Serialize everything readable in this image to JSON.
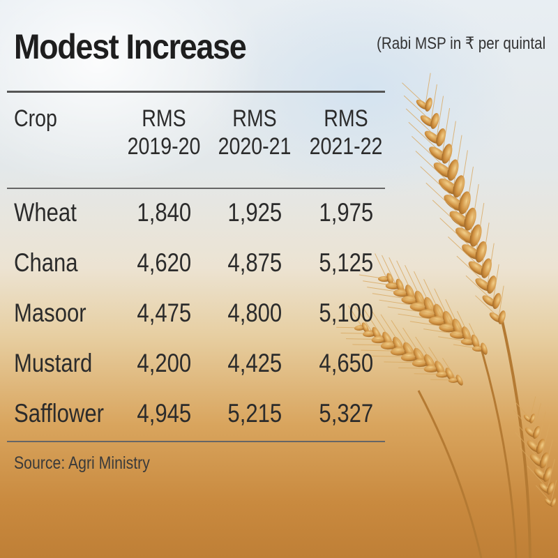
{
  "title": "Modest Increase",
  "subtitle": "(Rabi MSP in ₹ per quintal",
  "source": "Source: Agri Ministry",
  "chart_data": {
    "type": "table",
    "columns": [
      {
        "line1": "Crop",
        "line2": ""
      },
      {
        "line1": "RMS",
        "line2": "2019-20"
      },
      {
        "line1": "RMS",
        "line2": "2020-21"
      },
      {
        "line1": "RMS",
        "line2": "2021-22"
      }
    ],
    "rows": [
      {
        "crop": "Wheat",
        "values": [
          "1,840",
          "1,925",
          "1,975"
        ]
      },
      {
        "crop": "Chana",
        "values": [
          "4,620",
          "4,875",
          "5,125"
        ]
      },
      {
        "crop": "Masoor",
        "values": [
          "4,475",
          "4,800",
          "5,100"
        ]
      },
      {
        "crop": "Mustard",
        "values": [
          "4,200",
          "4,425",
          "4,650"
        ]
      },
      {
        "crop": "Safflower",
        "values": [
          "4,945",
          "5,215",
          "5,327"
        ]
      }
    ]
  },
  "colors": {
    "sky": "#e6ecf1",
    "field": "#cf9448",
    "wheat_gold": "#c98a3a",
    "rule": "#555555"
  }
}
